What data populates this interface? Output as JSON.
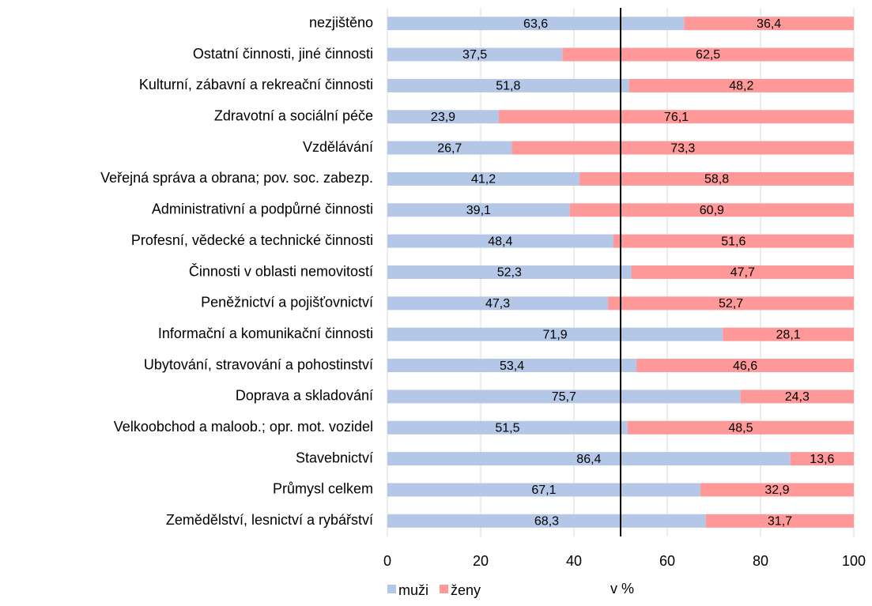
{
  "chart_data": {
    "type": "stacked_barh",
    "categories": [
      "nezjištěno",
      "Ostatní činnosti, jiné činnosti",
      "Kulturní, zábavní a rekreační činnosti",
      "Zdravotní a sociální péče",
      "Vzdělávání",
      "Veřejná správa a obrana; pov. soc. zabezp.",
      "Administrativní a podpůrné činnosti",
      "Profesní, vědecké a technické činnosti",
      "Činnosti v oblasti nemovitostí",
      "Peněžnictví a pojišťovnictví",
      "Informační a komunikační činnosti",
      "Ubytování, stravování a pohostinství",
      "Doprava a skladování",
      "Velkoobchod a maloob.; opr. mot. vozidel",
      "Stavebnictví",
      "Průmysl celkem",
      "Zemědělství, lesnictví a rybářství"
    ],
    "series": [
      {
        "name": "muži",
        "color": "#b4c7e7",
        "values": [
          63.6,
          37.5,
          51.8,
          23.9,
          26.7,
          41.2,
          39.1,
          48.4,
          52.3,
          47.3,
          71.9,
          53.4,
          75.7,
          51.5,
          86.4,
          67.1,
          68.3
        ],
        "value_labels": [
          "63,6",
          "37,5",
          "51,8",
          "23,9",
          "26,7",
          "41,2",
          "39,1",
          "48,4",
          "52,3",
          "47,3",
          "71,9",
          "53,4",
          "75,7",
          "51,5",
          "86,4",
          "67,1",
          "68,3"
        ]
      },
      {
        "name": "ženy",
        "color": "#ff9999",
        "values": [
          36.4,
          62.5,
          48.2,
          76.1,
          73.3,
          58.8,
          60.9,
          51.6,
          47.7,
          52.7,
          28.1,
          46.6,
          24.3,
          48.5,
          13.6,
          32.9,
          31.7
        ],
        "value_labels": [
          "36,4",
          "62,5",
          "48,2",
          "76,1",
          "73,3",
          "58,8",
          "60,9",
          "51,6",
          "47,7",
          "52,7",
          "28,1",
          "46,6",
          "24,3",
          "48,5",
          "13,6",
          "32,9",
          "31,7"
        ]
      }
    ],
    "xlabel": "v %",
    "xlim": [
      0,
      100
    ],
    "xticks": [
      0,
      20,
      40,
      60,
      80,
      100
    ],
    "grid": true,
    "reference_line": 50,
    "legend": "bottom-left"
  }
}
